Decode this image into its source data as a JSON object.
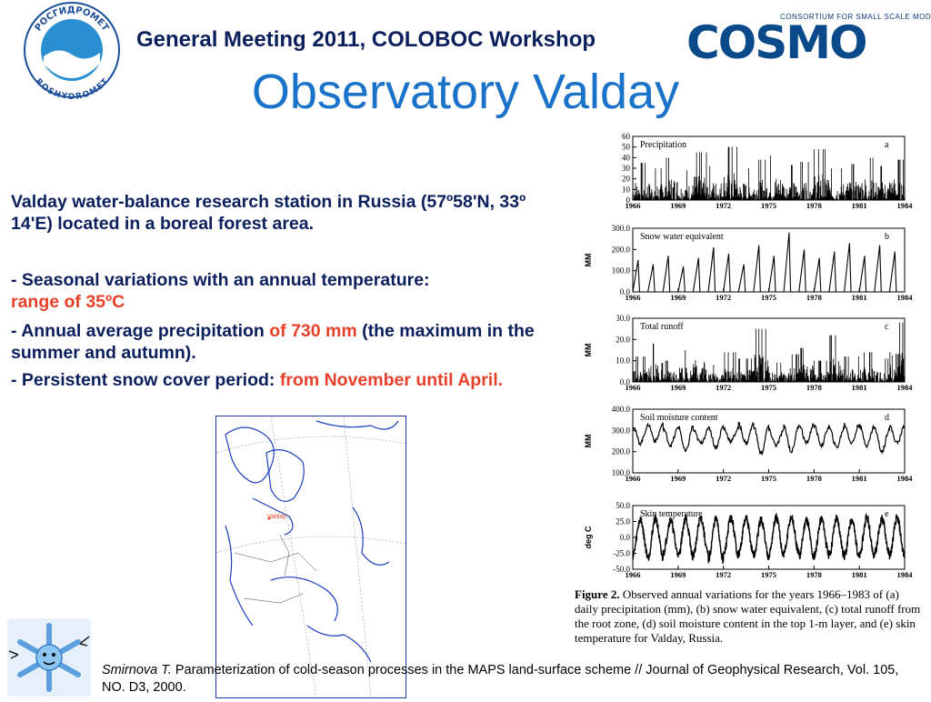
{
  "header": {
    "meeting": "General Meeting 2011, COLOBOC Workshop",
    "title": "Observatory Valday",
    "logo_left_top": "РОСГИДРОМЕТ",
    "logo_left_bottom": "ROSHYDROMET",
    "logo_right_tag": "CONSORTIUM FOR SMALL SCALE MODELING",
    "logo_right_word": "COSMO"
  },
  "body": {
    "intro": "Valday water-balance research station in Russia (57º58'N, 33º 14'E) located in a boreal forest area.",
    "b1_pre": "- Seasonal variations with an annual temperature:  ",
    "b1_hl": "range of 35ºC",
    "b2_pre": "- Annual average precipitation ",
    "b2_hl": "of 730 mm",
    "b2_post": " (the maximum in the summer and autumn).",
    "b3_pre": "- Persistent snow cover period: ",
    "b3_hl": "from November until April."
  },
  "map": {
    "label": "Valday"
  },
  "reference": {
    "author": "Smirnova T.",
    "text": " Parameterization of cold-season processes in the MAPS land-surface scheme // Journal of Geophysical Research, Vol. 105, NO. D3, 2000."
  },
  "figure": {
    "caption_label": "Figure 2.",
    "caption_text": "  Observed annual variations for the years 1966–1983 of (a) daily precipitation (mm), (b) snow water equivalent, (c) total runoff from the root zone, (d) soil moisture content in the top 1-m layer, and (e) skin temperature for Valday, Russia."
  },
  "chart_data": [
    {
      "type": "line",
      "panel": "a",
      "title": "Precipitation",
      "ylabel": "",
      "ylim": [
        0,
        60
      ],
      "yticks": [
        "60",
        "50",
        "40",
        "30",
        "20",
        "10",
        "0"
      ],
      "xlim": [
        1966,
        1984
      ],
      "xticks": [
        "1966",
        "1969",
        "1972",
        "1975",
        "1978",
        "1981",
        "1984"
      ],
      "years": [
        1966,
        1967,
        1968,
        1969,
        1970,
        1971,
        1972,
        1973,
        1974,
        1975,
        1976,
        1977,
        1978,
        1979,
        1980,
        1981,
        1982,
        1983
      ],
      "values": [
        35,
        30,
        40,
        28,
        45,
        32,
        50,
        30,
        38,
        42,
        33,
        36,
        48,
        30,
        34,
        40,
        32,
        38
      ]
    },
    {
      "type": "line",
      "panel": "b",
      "title": "Snow water equivalent",
      "ylabel": "MM",
      "ylim": [
        0,
        300
      ],
      "yticks": [
        "300.0",
        "200.0",
        "100.0",
        "0.0"
      ],
      "xlim": [
        1966,
        1984
      ],
      "xticks": [
        "1966",
        "1969",
        "1972",
        "1975",
        "1978",
        "1981",
        "1984"
      ],
      "years": [
        1966,
        1967,
        1968,
        1969,
        1970,
        1971,
        1972,
        1973,
        1974,
        1975,
        1976,
        1977,
        1978,
        1979,
        1980,
        1981,
        1982,
        1983
      ],
      "values": [
        150,
        130,
        170,
        120,
        160,
        210,
        180,
        130,
        220,
        170,
        280,
        200,
        160,
        190,
        230,
        170,
        220,
        190
      ]
    },
    {
      "type": "line",
      "panel": "c",
      "title": "Total runoff",
      "ylabel": "MM",
      "ylim": [
        0,
        30
      ],
      "yticks": [
        "30.0",
        "20.0",
        "10.0",
        "0.0"
      ],
      "xlim": [
        1966,
        1984
      ],
      "xticks": [
        "1966",
        "1969",
        "1972",
        "1975",
        "1978",
        "1981",
        "1984"
      ],
      "years": [
        1966,
        1967,
        1968,
        1969,
        1970,
        1971,
        1972,
        1973,
        1974,
        1975,
        1976,
        1977,
        1978,
        1979,
        1980,
        1981,
        1982,
        1983
      ],
      "values": [
        12,
        18,
        10,
        15,
        20,
        8,
        14,
        11,
        25,
        9,
        13,
        16,
        10,
        22,
        12,
        14,
        11,
        28
      ]
    },
    {
      "type": "line",
      "panel": "d",
      "title": "Soil moisture content",
      "ylabel": "MM",
      "ylim": [
        100,
        400
      ],
      "yticks": [
        "400.0",
        "300.0",
        "200.0",
        "100.0"
      ],
      "xlim": [
        1966,
        1984
      ],
      "xticks": [
        "1966",
        "1969",
        "1972",
        "1975",
        "1978",
        "1981",
        "1984"
      ],
      "years": [
        1966,
        1967,
        1968,
        1969,
        1970,
        1971,
        1972,
        1973,
        1974,
        1975,
        1976,
        1977,
        1978,
        1979,
        1980,
        1981,
        1982,
        1983
      ],
      "values_max": [
        320,
        330,
        310,
        320,
        300,
        320,
        310,
        330,
        320,
        300,
        320,
        330,
        320,
        310,
        330,
        320,
        310,
        320
      ],
      "values_min": [
        240,
        250,
        230,
        200,
        240,
        220,
        250,
        240,
        190,
        230,
        200,
        240,
        230,
        220,
        240,
        230,
        200,
        240
      ]
    },
    {
      "type": "line",
      "panel": "e",
      "title": "Skin temperature",
      "ylabel": "deg C",
      "ylim": [
        -50,
        50
      ],
      "yticks": [
        "50.0",
        "25.0",
        "0.0",
        "-25.0",
        "-50.0"
      ],
      "xlim": [
        1966,
        1984
      ],
      "xticks": [
        "1966",
        "1969",
        "1972",
        "1975",
        "1978",
        "1981",
        "1984"
      ],
      "years": [
        1966,
        1967,
        1968,
        1969,
        1970,
        1971,
        1972,
        1973,
        1974,
        1975,
        1976,
        1977,
        1978,
        1979,
        1980,
        1981,
        1982,
        1983
      ],
      "summer_max": [
        28,
        30,
        27,
        29,
        31,
        28,
        30,
        29,
        27,
        30,
        31,
        28,
        29,
        30,
        28,
        30,
        29,
        30
      ],
      "winter_min": [
        -28,
        -32,
        -25,
        -30,
        -27,
        -35,
        -28,
        -26,
        -30,
        -28,
        -25,
        -31,
        -28,
        -27,
        -30,
        -29,
        -26,
        -28
      ]
    }
  ]
}
